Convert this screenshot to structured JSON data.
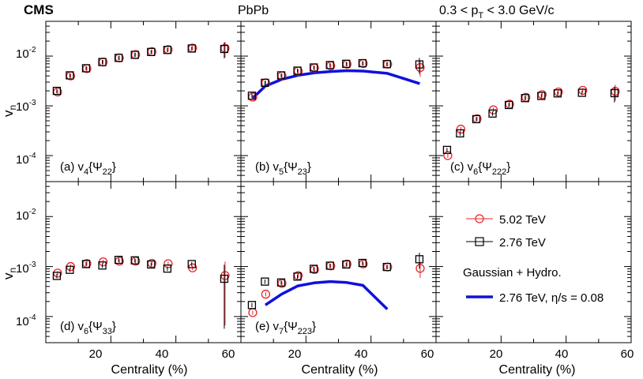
{
  "chart_data": {
    "type": "scatter",
    "header": {
      "experiment": "CMS",
      "system": "PbPb",
      "kinematics_prefix": "0.3 < p",
      "kinematics_sub": "T",
      "kinematics_suffix": " < 3.0 GeV/c"
    },
    "xlabel": "Centrality (%)",
    "ylabel": "v",
    "ylabel_sub": "n",
    "xlim": [
      0,
      60
    ],
    "ylim": [
      3e-05,
      0.05
    ],
    "y_scale": "log",
    "x_ticks": [
      "0",
      "20",
      "40",
      "60"
    ],
    "y_ticks": [
      {
        "value": 0.01,
        "base": "10",
        "exp": "-2"
      },
      {
        "value": 0.001,
        "base": "10",
        "exp": "-3"
      },
      {
        "value": 0.0001,
        "base": "10",
        "exp": "-4"
      }
    ],
    "colors": {
      "series_5_02": "#e8232a",
      "series_2_76": "#000000",
      "hydro": "#1010dd"
    },
    "legend": {
      "placement": "bottom-right panel",
      "entries": [
        {
          "label": "5.02 TeV",
          "marker": "circle",
          "color": "#e8232a"
        },
        {
          "label": "2.76 TeV",
          "marker": "square",
          "color": "#000000"
        }
      ],
      "hydro_title": "Gaussian + Hydro.",
      "hydro_label": "2.76 TeV, η/s = 0.08"
    },
    "panels": [
      {
        "id": "a",
        "label_prefix": "(a) v",
        "label_sub": "4",
        "label_open": "{Ψ",
        "label_sub2": "22",
        "label_close": "}",
        "series": [
          {
            "name": "5.02 TeV",
            "x": [
              3.5,
              7.5,
              12.5,
              17.5,
              22.5,
              27.5,
              32.5,
              37.5,
              45,
              55
            ],
            "y": [
              0.0019,
              0.004,
              0.0056,
              0.0076,
              0.0092,
              0.0107,
              0.0123,
              0.0135,
              0.0145,
              0.0143
            ]
          },
          {
            "name": "2.76 TeV",
            "x": [
              3.5,
              7.5,
              12.5,
              17.5,
              22.5,
              27.5,
              32.5,
              37.5,
              45,
              55
            ],
            "y": [
              0.002,
              0.0041,
              0.0057,
              0.0076,
              0.0092,
              0.0106,
              0.0121,
              0.0133,
              0.0142,
              0.0139
            ]
          }
        ]
      },
      {
        "id": "b",
        "label_prefix": "(b) v",
        "label_sub": "5",
        "label_open": "{Ψ",
        "label_sub2": "23",
        "label_close": "}",
        "series": [
          {
            "name": "5.02 TeV",
            "x": [
              3.5,
              7.5,
              12.5,
              17.5,
              22.5,
              27.5,
              32.5,
              37.5,
              45,
              55
            ],
            "y": [
              0.0015,
              0.0029,
              0.004,
              0.005,
              0.0058,
              0.0064,
              0.0069,
              0.0071,
              0.0069,
              0.0059
            ]
          },
          {
            "name": "2.76 TeV",
            "x": [
              3.5,
              7.5,
              12.5,
              17.5,
              22.5,
              27.5,
              32.5,
              37.5,
              45,
              55
            ],
            "y": [
              0.0016,
              0.0029,
              0.0041,
              0.0051,
              0.0059,
              0.0066,
              0.007,
              0.0072,
              0.0069,
              0.0068
            ]
          }
        ],
        "hydro": {
          "x": [
            3.5,
            7.5,
            12.5,
            17.5,
            22.5,
            27.5,
            32.5,
            37.5,
            45,
            55
          ],
          "y": [
            0.0014,
            0.0025,
            0.0034,
            0.0041,
            0.0046,
            0.0049,
            0.0051,
            0.005,
            0.0045,
            0.0028
          ]
        }
      },
      {
        "id": "c",
        "label_prefix": "(c) v",
        "label_sub": "6",
        "label_open": "{Ψ",
        "label_sub2": "222",
        "label_close": "}",
        "series": [
          {
            "name": "5.02 TeV",
            "x": [
              3.5,
              7.5,
              12.5,
              17.5,
              22.5,
              27.5,
              32.5,
              37.5,
              45,
              55
            ],
            "y": [
              0.0001,
              0.00034,
              0.00055,
              0.00083,
              0.00108,
              0.00148,
              0.00168,
              0.0019,
              0.00205,
              0.00195
            ]
          },
          {
            "name": "2.76 TeV",
            "x": [
              3.5,
              7.5,
              12.5,
              17.5,
              22.5,
              27.5,
              32.5,
              37.5,
              45,
              55
            ],
            "y": [
              0.00013,
              0.00028,
              0.00054,
              0.0007,
              0.00104,
              0.00143,
              0.00158,
              0.00178,
              0.00183,
              0.0018
            ]
          }
        ]
      },
      {
        "id": "d",
        "label_prefix": "(d) v",
        "label_sub": "6",
        "label_open": "{Ψ",
        "label_sub2": "33",
        "label_close": "}",
        "series": [
          {
            "name": "5.02 TeV",
            "x": [
              3.5,
              7.5,
              12.5,
              17.5,
              22.5,
              27.5,
              32.5,
              37.5,
              45,
              55
            ],
            "y": [
              0.00074,
              0.001,
              0.00115,
              0.00124,
              0.00128,
              0.00128,
              0.00116,
              0.00114,
              0.00094,
              0.00066
            ]
          },
          {
            "name": "2.76 TeV",
            "x": [
              3.5,
              7.5,
              12.5,
              17.5,
              22.5,
              27.5,
              32.5,
              37.5,
              45,
              55
            ],
            "y": [
              0.00065,
              0.00086,
              0.00112,
              0.00105,
              0.00136,
              0.00133,
              0.0011,
              0.00091,
              0.00112,
              0.00057
            ]
          }
        ]
      },
      {
        "id": "e",
        "label_prefix": "(e) v",
        "label_sub": "7",
        "label_open": "{Ψ",
        "label_sub2": "223",
        "label_close": "}",
        "series": [
          {
            "name": "5.02 TeV",
            "x": [
              3.5,
              7.5,
              12.5,
              17.5,
              22.5,
              27.5,
              32.5,
              37.5,
              45,
              55
            ],
            "y": [
              0.00012,
              0.00028,
              0.00046,
              0.00066,
              0.00087,
              0.00103,
              0.00112,
              0.00113,
              0.00098,
              0.00092
            ]
          },
          {
            "name": "2.76 TeV",
            "x": [
              3.5,
              7.5,
              12.5,
              17.5,
              22.5,
              27.5,
              32.5,
              37.5,
              45,
              55
            ],
            "y": [
              0.00017,
              0.0005,
              0.00048,
              0.00063,
              0.0009,
              0.00104,
              0.0011,
              0.00118,
              0.00098,
              0.0014
            ]
          }
        ],
        "hydro": {
          "x": [
            7.5,
            12.5,
            17.5,
            22.5,
            27.5,
            32.5,
            37.5,
            45
          ],
          "y": [
            0.00017,
            0.00028,
            0.00041,
            0.00047,
            0.0005,
            0.00048,
            0.00042,
            0.00014
          ]
        }
      }
    ]
  }
}
